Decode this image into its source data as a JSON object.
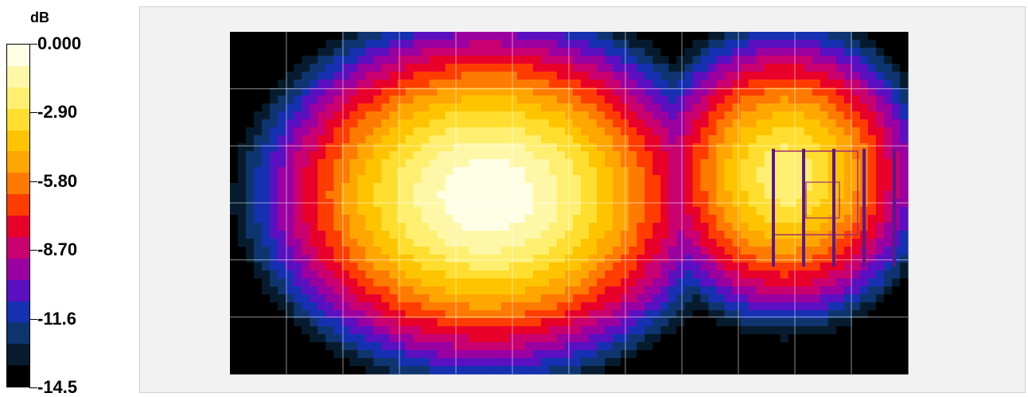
{
  "chart_data": {
    "type": "heatmap",
    "unit": "dB",
    "scale_min": -14.5,
    "scale_max": 0.0,
    "levels": 15,
    "tick_labels": [
      "0.000",
      "-2.90",
      "-5.80",
      "-8.70",
      "-11.6",
      "-14.5"
    ],
    "tick_values": [
      0.0,
      -2.9,
      -5.8,
      -8.7,
      -11.6,
      -14.5
    ],
    "colors": [
      "#ffffe6",
      "#fff7a8",
      "#ffef70",
      "#ffde30",
      "#ffc400",
      "#ffa600",
      "#ff7a00",
      "#ff3c00",
      "#e8002a",
      "#c80070",
      "#9a00a0",
      "#5a10c0",
      "#1530b0",
      "#0f3570",
      "#061c2e",
      "#000000"
    ],
    "grid": true,
    "sources": [
      {
        "x": 0.38,
        "y": 0.48,
        "level": 0.0
      },
      {
        "x": 0.82,
        "y": 0.42,
        "level": -2.0
      }
    ],
    "annotation_bars": 5
  }
}
